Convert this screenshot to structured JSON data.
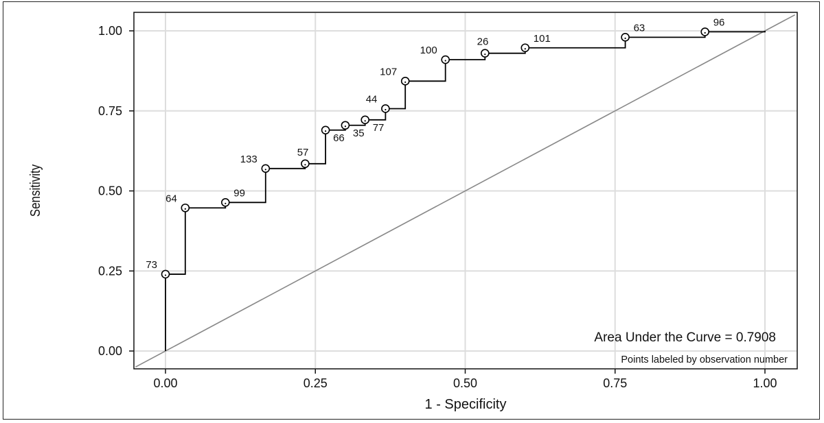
{
  "chart_data": {
    "type": "line",
    "xlabel": "1 - Specificity",
    "ylabel": "Sensitivity",
    "xlim": [
      -0.05,
      1.05
    ],
    "ylim": [
      -0.06,
      1.06
    ],
    "x_ticks": [
      0.0,
      0.25,
      0.5,
      0.75,
      1.0
    ],
    "x_tick_labels": [
      "0.00",
      "0.25",
      "0.50",
      "0.75",
      "1.00"
    ],
    "y_ticks": [
      0.0,
      0.25,
      0.5,
      0.75,
      1.0
    ],
    "y_tick_labels": [
      "0.00",
      "0.25",
      "0.50",
      "0.75",
      "1.00"
    ],
    "grid": true,
    "annotation": "Area Under the Curve = 0.7908",
    "note": "Points labeled by observation number",
    "points": [
      {
        "label": "73",
        "x": 0.0,
        "y": 0.24,
        "pos": "tl"
      },
      {
        "label": "64",
        "x": 0.033,
        "y": 0.447,
        "pos": "tl"
      },
      {
        "label": "99",
        "x": 0.1,
        "y": 0.464,
        "pos": "tr"
      },
      {
        "label": "133",
        "x": 0.167,
        "y": 0.57,
        "pos": "tl"
      },
      {
        "label": "57",
        "x": 0.233,
        "y": 0.585,
        "pos": "tl2"
      },
      {
        "label": "66",
        "x": 0.267,
        "y": 0.69,
        "pos": "br"
      },
      {
        "label": "35",
        "x": 0.3,
        "y": 0.705,
        "pos": "br"
      },
      {
        "label": "77",
        "x": 0.333,
        "y": 0.722,
        "pos": "br"
      },
      {
        "label": "44",
        "x": 0.367,
        "y": 0.757,
        "pos": "tl"
      },
      {
        "label": "107",
        "x": 0.4,
        "y": 0.843,
        "pos": "tl"
      },
      {
        "label": "100",
        "x": 0.467,
        "y": 0.91,
        "pos": "tl"
      },
      {
        "label": "26",
        "x": 0.533,
        "y": 0.93,
        "pos": "tl2"
      },
      {
        "label": "101",
        "x": 0.6,
        "y": 0.947,
        "pos": "tr"
      },
      {
        "label": "63",
        "x": 0.767,
        "y": 0.98,
        "pos": "tr"
      },
      {
        "label": "96",
        "x": 0.9,
        "y": 0.997,
        "pos": "tr"
      }
    ],
    "curve_end": {
      "x": 1.0,
      "y": 1.0
    },
    "reference_line": {
      "from": [
        -0.05,
        -0.05
      ],
      "to": [
        1.05,
        1.05
      ]
    },
    "colors": {
      "curve": "#000000",
      "reference": "#888888",
      "grid": "#dddddd"
    }
  }
}
